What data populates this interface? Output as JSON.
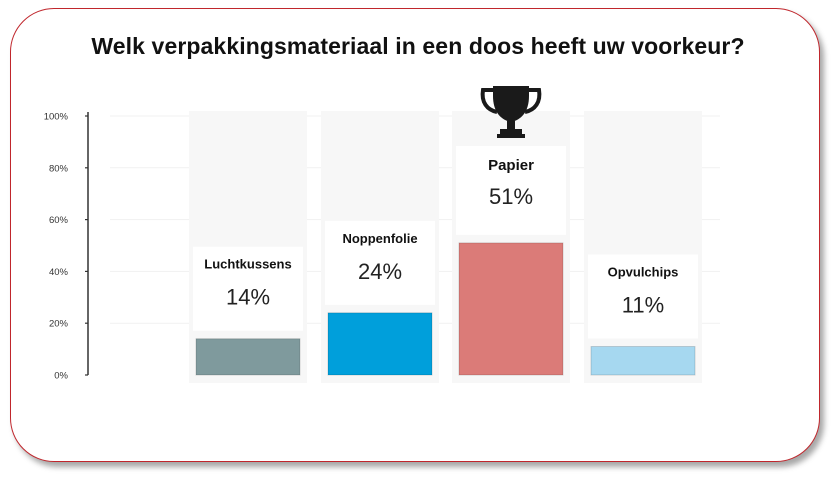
{
  "chart_data": {
    "type": "bar",
    "title": "Welk verpakkingsmateriaal in een doos heeft uw voorkeur?",
    "categories": [
      "Luchtkussens",
      "Noppenfolie",
      "Papier",
      "Opvulchips"
    ],
    "values": [
      14,
      24,
      51,
      11
    ],
    "value_labels": [
      "14%",
      "24%",
      "51%",
      "11%"
    ],
    "colors": [
      "#7f9a9d",
      "#009fdb",
      "#db7b78",
      "#a6d8f0"
    ],
    "yticks": [
      "0%",
      "20%",
      "40%",
      "60%",
      "80%",
      "100%"
    ],
    "ylim": [
      0,
      100
    ],
    "winner_icon": "trophy-icon",
    "winner_index": 2
  }
}
